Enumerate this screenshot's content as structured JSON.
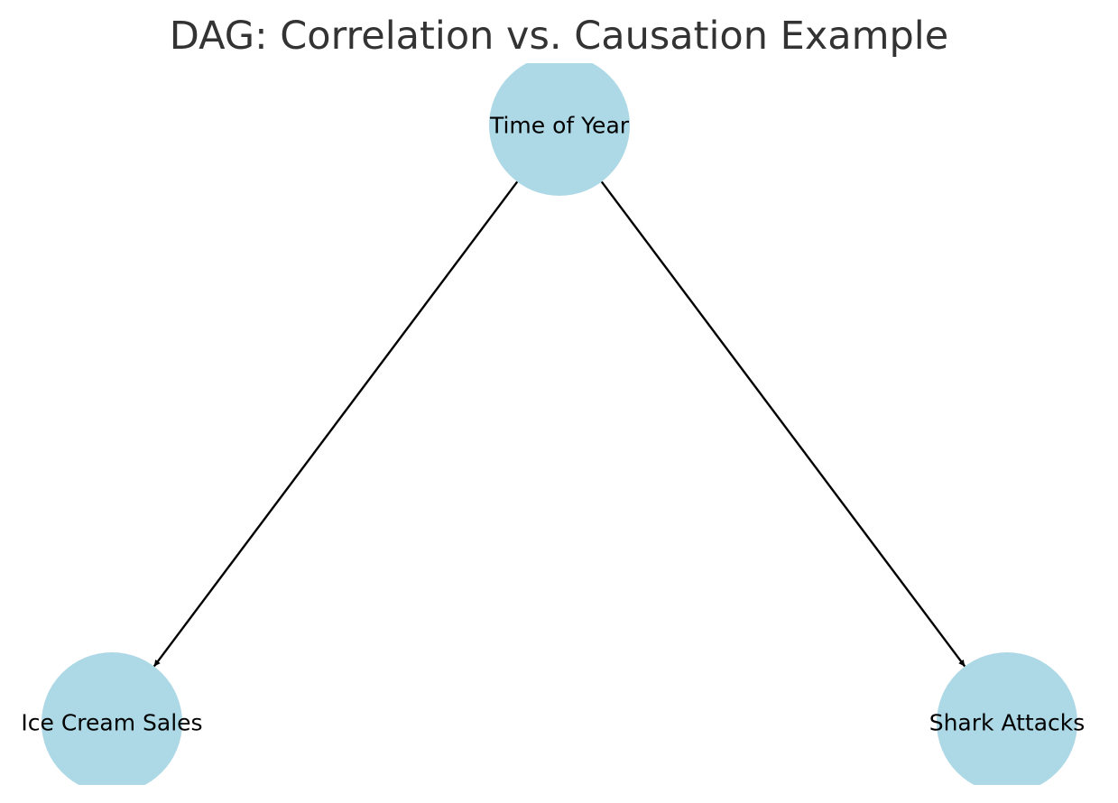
{
  "title": "DAG: Correlation vs. Causation Example",
  "colors": {
    "node_fill": "#add8e6",
    "edge": "#000000",
    "title_text": "#333333",
    "node_text": "#000000"
  },
  "nodes": [
    {
      "id": "time",
      "label": "Time of Year"
    },
    {
      "id": "ice",
      "label": "Ice Cream Sales"
    },
    {
      "id": "shark",
      "label": "Shark Attacks"
    }
  ],
  "edges": [
    {
      "from": "time",
      "to": "ice"
    },
    {
      "from": "time",
      "to": "shark"
    }
  ]
}
